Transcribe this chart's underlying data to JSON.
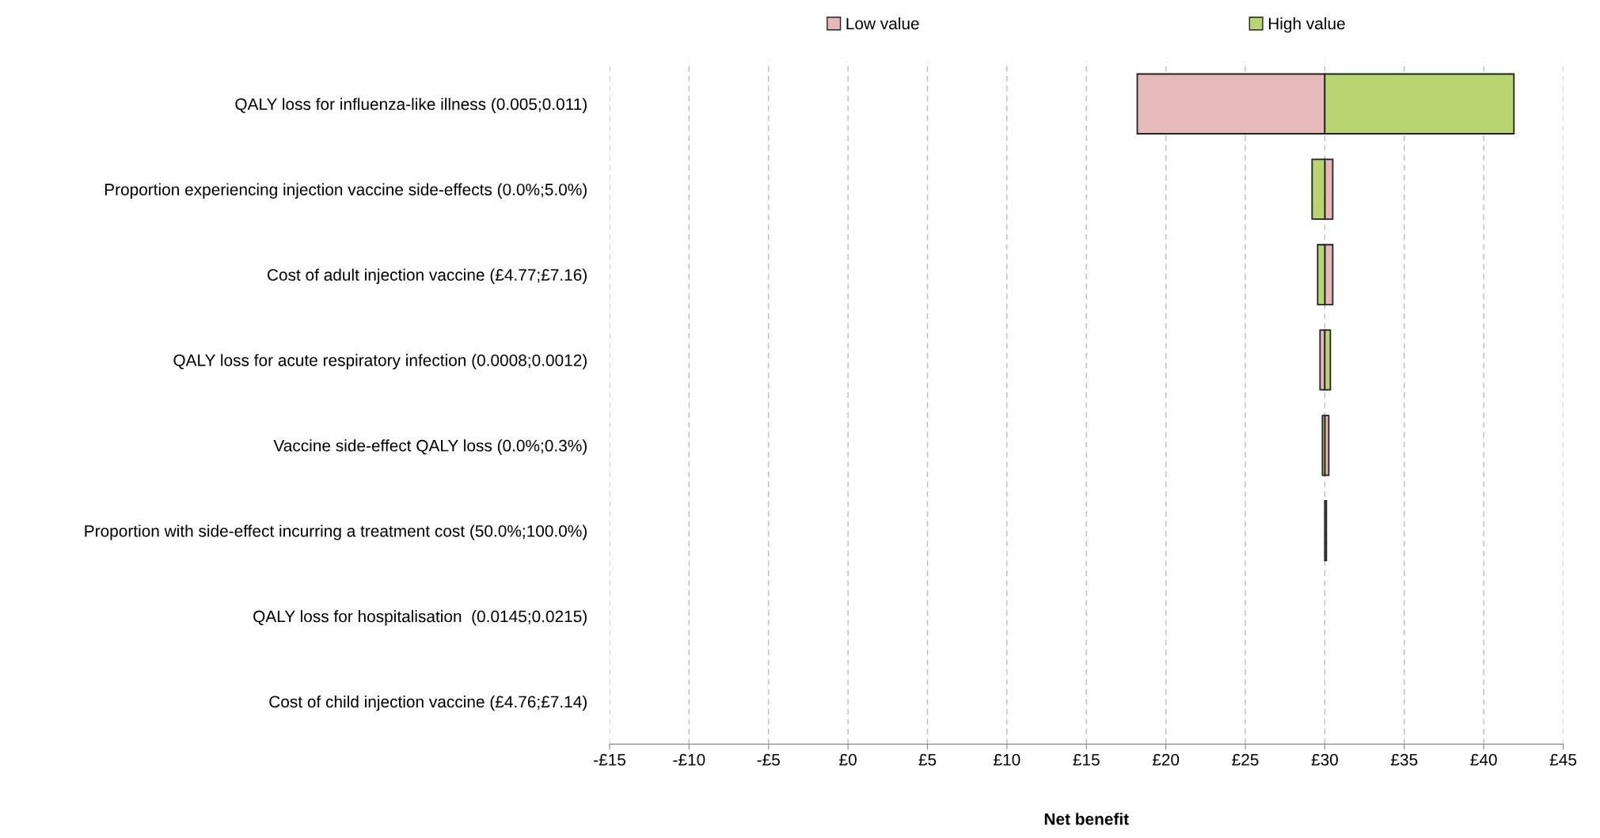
{
  "chart_data": {
    "type": "bar",
    "orientation": "horizontal",
    "xlabel": "Net benefit",
    "categories": [
      "QALY loss for influenza-like illness (0.005;0.011)",
      "Proportion experiencing injection vaccine side-effects (0.0%;5.0%)",
      "Cost of adult injection vaccine (£4.77;£7.16)",
      "QALY loss for acute respiratory infection (0.0008;0.0012)",
      "Vaccine side-effect QALY loss (0.0%;0.3%)",
      "Proportion with side-effect incurring a treatment cost (50.0%;100.0%)",
      "QALY loss for hospitalisation  (0.0145;0.0215)",
      "Cost of child injection vaccine (£4.76;£7.14)"
    ],
    "series": [
      {
        "name": "Low value",
        "color": "#e6b8b7",
        "base": [
          30,
          30,
          30,
          30,
          30,
          30,
          null,
          null
        ],
        "values": [
          -11.8,
          0.5,
          0.5,
          -0.3,
          0.25,
          0.1,
          null,
          null
        ]
      },
      {
        "name": "High value",
        "color": "#b9d571",
        "base": [
          30,
          30,
          30,
          30,
          30,
          null,
          null,
          null
        ],
        "values": [
          11.9,
          -0.8,
          -0.45,
          0.35,
          -0.15,
          null,
          null,
          null
        ]
      }
    ],
    "xlim": [
      -15,
      45
    ],
    "xticks": [
      {
        "value": -15,
        "label": "-£15"
      },
      {
        "value": -10,
        "label": "-£10"
      },
      {
        "value": -5,
        "label": "-£5"
      },
      {
        "value": 0,
        "label": "£0"
      },
      {
        "value": 5,
        "label": "£5"
      },
      {
        "value": 10,
        "label": "£10"
      },
      {
        "value": 15,
        "label": "£15"
      },
      {
        "value": 20,
        "label": "£20"
      },
      {
        "value": 25,
        "label": "£25"
      },
      {
        "value": 30,
        "label": "£30"
      },
      {
        "value": 35,
        "label": "£35"
      },
      {
        "value": 40,
        "label": "£40"
      },
      {
        "value": 45,
        "label": "£45"
      }
    ],
    "grid": "x",
    "legend": "top"
  }
}
